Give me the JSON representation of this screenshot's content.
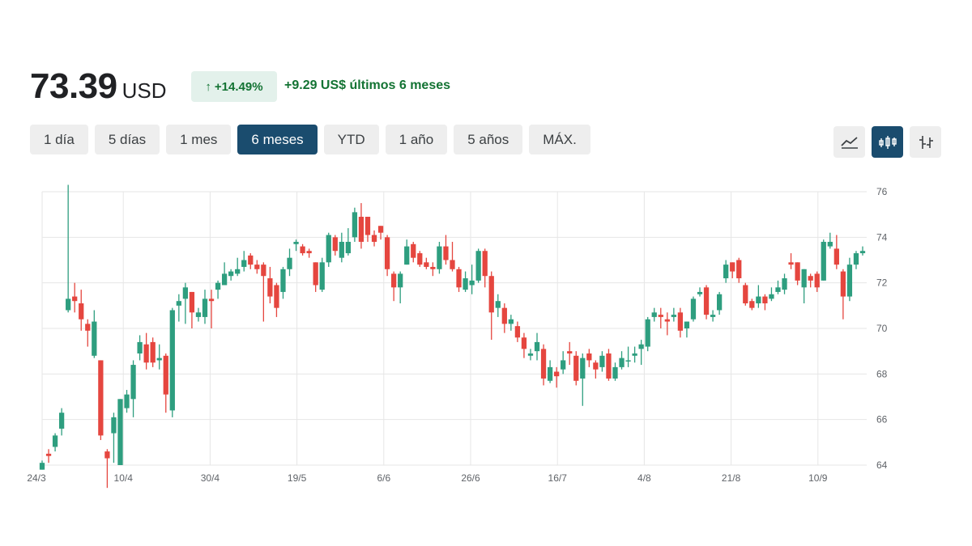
{
  "header": {
    "price": "73.39",
    "currency": "USD",
    "change_arrow": "↑",
    "change_percent": "+14.49%",
    "change_abs": "+9.29 US$",
    "change_period": "últimos 6 meses",
    "positive_color": "#137333",
    "badge_bg": "#e3f1eb"
  },
  "ranges": [
    {
      "label": "1 día",
      "active": false
    },
    {
      "label": "5 días",
      "active": false
    },
    {
      "label": "1 mes",
      "active": false
    },
    {
      "label": "6 meses",
      "active": true
    },
    {
      "label": "YTD",
      "active": false
    },
    {
      "label": "1 año",
      "active": false
    },
    {
      "label": "5 años",
      "active": false
    },
    {
      "label": "MÁX.",
      "active": false
    }
  ],
  "chart_types": [
    {
      "icon": "line-chart-icon",
      "active": false
    },
    {
      "icon": "candlestick-chart-icon",
      "active": true
    },
    {
      "icon": "ohlc-bar-chart-icon",
      "active": false
    }
  ],
  "chart_data": {
    "type": "candlestick",
    "y_ticks": [
      64,
      66,
      68,
      70,
      72,
      74,
      76
    ],
    "ylim": [
      64,
      76
    ],
    "x_ticks": [
      "24/3",
      "10/4",
      "30/4",
      "19/5",
      "6/6",
      "26/6",
      "16/7",
      "4/8",
      "21/8",
      "10/9"
    ],
    "up_color": "#2e9e7f",
    "down_color": "#e5463f",
    "grid": true,
    "candles": [
      [
        63.8,
        64.1,
        63.8,
        64.2
      ],
      [
        64.5,
        64.4,
        64.1,
        64.7
      ],
      [
        64.8,
        65.3,
        64.6,
        65.4
      ],
      [
        65.6,
        66.3,
        65.3,
        66.5
      ],
      [
        70.8,
        71.3,
        70.7,
        76.3
      ],
      [
        71.4,
        71.2,
        70.7,
        72.0
      ],
      [
        71.1,
        70.4,
        69.9,
        71.7
      ],
      [
        70.2,
        69.9,
        69.2,
        70.4
      ],
      [
        68.8,
        70.3,
        68.7,
        70.8
      ],
      [
        68.6,
        65.3,
        65.1,
        68.6
      ],
      [
        64.6,
        64.3,
        63.0,
        64.7
      ],
      [
        65.4,
        66.1,
        64.1,
        66.3
      ],
      [
        64.0,
        66.9,
        64.0,
        66.9
      ],
      [
        66.5,
        67.1,
        66.3,
        67.3
      ],
      [
        66.9,
        68.4,
        66.1,
        68.6
      ],
      [
        68.9,
        69.4,
        68.6,
        69.7
      ],
      [
        69.3,
        68.5,
        68.2,
        69.8
      ],
      [
        69.4,
        68.5,
        68.3,
        69.6
      ],
      [
        68.6,
        68.7,
        68.2,
        69.3
      ],
      [
        68.8,
        67.1,
        66.3,
        68.9
      ],
      [
        66.4,
        70.8,
        66.1,
        70.9
      ],
      [
        71.0,
        71.2,
        70.3,
        71.5
      ],
      [
        71.3,
        71.8,
        70.2,
        72.0
      ],
      [
        71.6,
        70.7,
        70.0,
        71.6
      ],
      [
        70.5,
        70.7,
        70.3,
        70.9
      ],
      [
        70.5,
        71.3,
        70.2,
        71.7
      ],
      [
        71.3,
        71.2,
        70.0,
        71.7
      ],
      [
        71.7,
        72.0,
        71.3,
        72.1
      ],
      [
        71.9,
        72.4,
        71.9,
        72.9
      ],
      [
        72.3,
        72.5,
        72.1,
        72.6
      ],
      [
        72.4,
        72.6,
        72.3,
        73.1
      ],
      [
        72.7,
        73.0,
        72.5,
        73.4
      ],
      [
        73.2,
        72.8,
        72.6,
        73.3
      ],
      [
        72.8,
        72.6,
        72.4,
        73.0
      ],
      [
        72.8,
        72.3,
        70.3,
        72.9
      ],
      [
        72.2,
        71.4,
        71.1,
        72.7
      ],
      [
        71.9,
        70.9,
        70.5,
        72.0
      ],
      [
        71.6,
        72.6,
        71.3,
        72.7
      ],
      [
        72.6,
        73.1,
        72.3,
        73.5
      ],
      [
        73.7,
        73.8,
        73.4,
        73.9
      ],
      [
        73.6,
        73.3,
        73.2,
        73.7
      ],
      [
        73.4,
        73.3,
        73.1,
        73.5
      ],
      [
        72.9,
        71.9,
        71.6,
        72.9
      ],
      [
        71.7,
        72.9,
        71.6,
        73.1
      ],
      [
        72.9,
        74.1,
        72.7,
        74.2
      ],
      [
        74.0,
        73.4,
        73.2,
        74.1
      ],
      [
        73.1,
        73.8,
        72.9,
        74.2
      ],
      [
        73.3,
        73.8,
        73.2,
        74.4
      ],
      [
        74.0,
        75.1,
        73.8,
        75.3
      ],
      [
        74.9,
        73.8,
        73.5,
        75.5
      ],
      [
        74.9,
        74.1,
        73.8,
        74.9
      ],
      [
        74.1,
        73.8,
        73.6,
        74.3
      ],
      [
        74.5,
        74.2,
        73.9,
        74.5
      ],
      [
        74.0,
        72.6,
        72.3,
        74.1
      ],
      [
        72.4,
        71.8,
        71.2,
        72.5
      ],
      [
        71.8,
        72.4,
        71.1,
        72.5
      ],
      [
        72.8,
        73.6,
        72.8,
        73.9
      ],
      [
        73.7,
        73.1,
        72.9,
        73.8
      ],
      [
        73.3,
        72.8,
        72.7,
        73.4
      ],
      [
        72.9,
        72.7,
        72.6,
        73.1
      ],
      [
        72.7,
        72.6,
        72.3,
        72.9
      ],
      [
        72.6,
        73.6,
        72.4,
        73.8
      ],
      [
        73.6,
        73.0,
        72.8,
        74.1
      ],
      [
        73.0,
        72.6,
        72.5,
        73.8
      ],
      [
        72.6,
        71.8,
        71.6,
        72.7
      ],
      [
        71.7,
        72.2,
        71.6,
        72.5
      ],
      [
        71.9,
        72.1,
        71.5,
        72.8
      ],
      [
        72.1,
        73.4,
        72.0,
        73.5
      ],
      [
        73.4,
        72.3,
        71.8,
        73.5
      ],
      [
        72.3,
        70.7,
        69.5,
        72.5
      ],
      [
        70.9,
        71.2,
        70.5,
        71.5
      ],
      [
        70.9,
        70.2,
        69.8,
        71.1
      ],
      [
        70.2,
        70.4,
        69.9,
        70.6
      ],
      [
        70.1,
        69.6,
        69.4,
        70.3
      ],
      [
        69.6,
        69.1,
        68.7,
        69.8
      ],
      [
        68.8,
        68.9,
        68.6,
        69.1
      ],
      [
        69.0,
        69.4,
        68.6,
        69.8
      ],
      [
        69.1,
        67.8,
        67.5,
        69.3
      ],
      [
        67.7,
        68.3,
        67.6,
        68.6
      ],
      [
        68.1,
        67.9,
        67.4,
        68.3
      ],
      [
        68.2,
        68.6,
        68.0,
        69.0
      ],
      [
        69.0,
        68.9,
        68.4,
        69.4
      ],
      [
        68.8,
        67.7,
        67.5,
        69.0
      ],
      [
        67.8,
        68.7,
        66.6,
        68.9
      ],
      [
        68.9,
        68.6,
        68.3,
        69.1
      ],
      [
        68.5,
        68.2,
        67.8,
        68.6
      ],
      [
        68.3,
        68.8,
        68.1,
        69.0
      ],
      [
        68.9,
        67.8,
        67.7,
        69.1
      ],
      [
        67.8,
        68.3,
        67.7,
        68.5
      ],
      [
        68.3,
        68.7,
        68.2,
        69.0
      ],
      [
        68.6,
        68.6,
        68.3,
        69.2
      ],
      [
        68.8,
        68.9,
        68.5,
        69.2
      ],
      [
        69.1,
        69.3,
        68.4,
        69.5
      ],
      [
        69.2,
        70.4,
        69.0,
        70.5
      ],
      [
        70.5,
        70.7,
        70.3,
        70.9
      ],
      [
        70.6,
        70.5,
        70.0,
        70.9
      ],
      [
        70.4,
        70.3,
        69.7,
        70.7
      ],
      [
        70.5,
        70.6,
        70.3,
        70.9
      ],
      [
        70.7,
        69.9,
        69.6,
        70.9
      ],
      [
        70.0,
        70.3,
        69.6,
        70.3
      ],
      [
        70.4,
        71.3,
        70.3,
        71.4
      ],
      [
        71.5,
        71.6,
        71.4,
        71.8
      ],
      [
        71.8,
        70.6,
        70.4,
        71.9
      ],
      [
        70.5,
        70.6,
        70.3,
        70.8
      ],
      [
        70.8,
        71.5,
        70.6,
        71.6
      ],
      [
        72.2,
        72.8,
        72.0,
        73.0
      ],
      [
        72.9,
        72.5,
        72.2,
        72.9
      ],
      [
        73.0,
        72.2,
        72.0,
        73.1
      ],
      [
        71.9,
        71.1,
        71.0,
        72.0
      ],
      [
        71.2,
        70.9,
        70.8,
        71.3
      ],
      [
        71.1,
        71.4,
        70.9,
        71.9
      ],
      [
        71.4,
        71.1,
        70.8,
        71.5
      ],
      [
        71.3,
        71.5,
        71.2,
        71.8
      ],
      [
        71.6,
        71.8,
        71.5,
        72.1
      ],
      [
        71.7,
        72.2,
        71.5,
        72.4
      ],
      [
        72.9,
        72.8,
        72.6,
        73.3
      ],
      [
        72.9,
        72.1,
        71.9,
        72.9
      ],
      [
        71.8,
        72.6,
        71.1,
        72.6
      ],
      [
        72.3,
        72.1,
        71.8,
        72.4
      ],
      [
        72.4,
        71.8,
        71.6,
        72.5
      ],
      [
        72.1,
        73.8,
        72.1,
        73.9
      ],
      [
        73.6,
        73.8,
        73.5,
        74.2
      ],
      [
        73.5,
        72.8,
        72.6,
        74.1
      ],
      [
        72.5,
        71.4,
        70.4,
        72.6
      ],
      [
        71.4,
        72.8,
        71.2,
        73.1
      ],
      [
        72.8,
        73.3,
        72.6,
        73.4
      ],
      [
        73.3,
        73.4,
        73.2,
        73.6
      ]
    ]
  }
}
